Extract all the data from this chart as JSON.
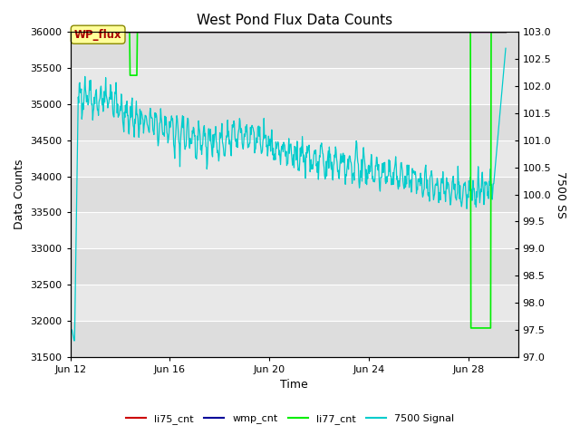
{
  "title": "West Pond Flux Data Counts",
  "xlabel": "Time",
  "ylabel_left": "Data Counts",
  "ylabel_right": "7500 SS",
  "ylim_left": [
    31500,
    36000
  ],
  "ylim_right": [
    97.0,
    103.0
  ],
  "yticks_left": [
    31500,
    32000,
    32500,
    33000,
    33500,
    34000,
    34500,
    35000,
    35500,
    36000
  ],
  "yticks_right": [
    97.0,
    97.5,
    98.0,
    98.5,
    99.0,
    99.5,
    100.0,
    100.5,
    101.0,
    101.5,
    102.0,
    102.5,
    103.0
  ],
  "xlim": [
    12,
    30
  ],
  "xtick_days": [
    12,
    16,
    20,
    24,
    28
  ],
  "xtick_labels": [
    "Jun 12",
    "Jun 16",
    "Jun 20",
    "Jun 24",
    "Jun 28"
  ],
  "bg_color": "#ffffff",
  "plot_bg_color": "#e8e8e8",
  "stripe_color": "#d4d4d4",
  "legend_items": [
    "li75_cnt",
    "wmp_cnt",
    "li77_cnt",
    "7500 Signal"
  ],
  "legend_colors": [
    "#cc0000",
    "#000099",
    "#00cc00",
    "#00cccc"
  ],
  "wp_flux_label": "WP_flux",
  "wp_flux_color": "#aa0000",
  "wp_flux_bg": "#ffff99",
  "wp_flux_edge": "#888800",
  "li77_color": "#00ee00",
  "cyan_color": "#00cccc",
  "grid_color": "#ffffff",
  "title_fontsize": 11,
  "axis_fontsize": 9,
  "tick_fontsize": 8,
  "legend_fontsize": 8
}
